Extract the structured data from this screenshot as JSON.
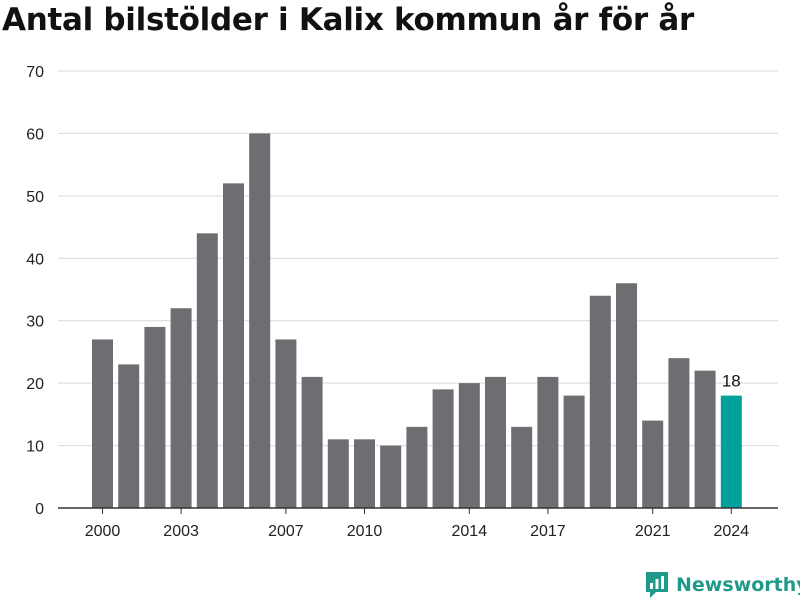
{
  "title": "Antal bilstölder i Kalix kommun år för år",
  "brand": {
    "name": "Newsworthy",
    "icon": "bar-chart-logo-icon",
    "color": "#1f9a8a"
  },
  "chart_data": {
    "type": "bar",
    "title": "Antal bilstölder i Kalix kommun år för år",
    "xlabel": "",
    "ylabel": "",
    "categories": [
      2000,
      2001,
      2002,
      2003,
      2004,
      2005,
      2006,
      2007,
      2008,
      2009,
      2010,
      2011,
      2012,
      2013,
      2014,
      2015,
      2016,
      2017,
      2018,
      2019,
      2020,
      2021,
      2022,
      2023,
      2024
    ],
    "values": [
      27,
      23,
      29,
      32,
      44,
      52,
      60,
      27,
      21,
      11,
      11,
      10,
      13,
      19,
      20,
      21,
      13,
      21,
      18,
      34,
      36,
      14,
      24,
      22,
      18
    ],
    "x_tick_labels": [
      "2000",
      "2003",
      "2007",
      "2010",
      "2014",
      "2017",
      "2021",
      "2024"
    ],
    "y_ticks": [
      0,
      10,
      20,
      30,
      40,
      50,
      60,
      70
    ],
    "ylim": [
      0,
      70
    ],
    "grid": true,
    "bar_color": "#6e6d72",
    "highlight_color": "#00a19a",
    "highlight_category": 2024,
    "data_label": "18"
  }
}
